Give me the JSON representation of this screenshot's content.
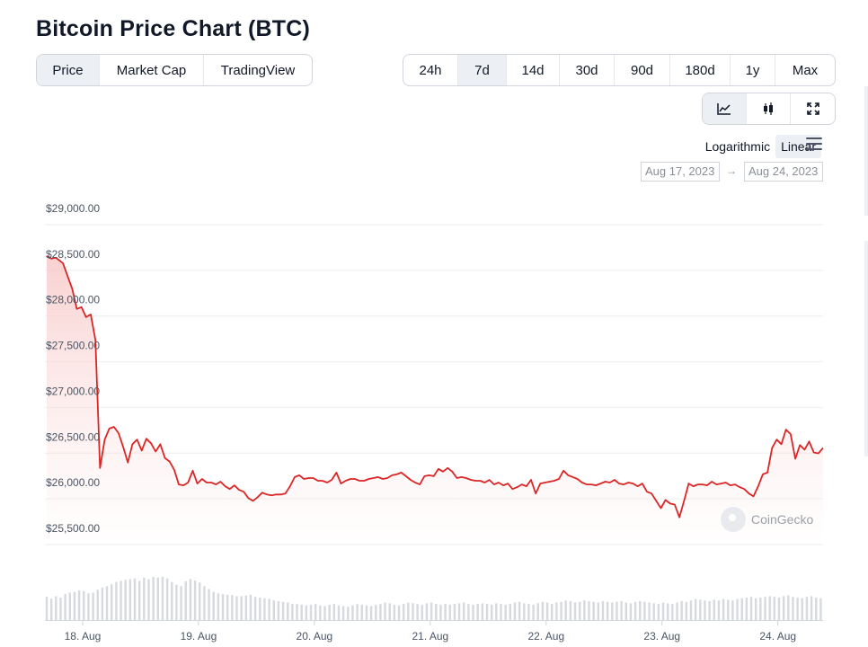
{
  "title": "Bitcoin Price Chart (BTC)",
  "tabs": [
    {
      "label": "Price",
      "active": true
    },
    {
      "label": "Market Cap",
      "active": false
    },
    {
      "label": "TradingView",
      "active": false
    }
  ],
  "ranges": [
    {
      "label": "24h",
      "active": false
    },
    {
      "label": "7d",
      "active": true
    },
    {
      "label": "14d",
      "active": false
    },
    {
      "label": "30d",
      "active": false
    },
    {
      "label": "90d",
      "active": false
    },
    {
      "label": "180d",
      "active": false
    },
    {
      "label": "1y",
      "active": false
    },
    {
      "label": "Max",
      "active": false
    }
  ],
  "views": [
    {
      "icon": "line-chart-icon",
      "active": true
    },
    {
      "icon": "candlestick-icon",
      "active": false
    },
    {
      "icon": "expand-icon",
      "active": false
    }
  ],
  "scale": {
    "log_label": "Logarithmic",
    "linear_label": "Linear",
    "selected": "Linear"
  },
  "date_range": {
    "from": "Aug 17, 2023",
    "arrow": "→",
    "to": "Aug 24, 2023"
  },
  "watermark": "CoinGecko",
  "colors": {
    "line": "#dc2626",
    "fill": "#fde2e2",
    "volume": "#d6d9de",
    "grid": "#eeeeee"
  },
  "chart_data": {
    "type": "area",
    "title": "",
    "xlabel": "",
    "ylabel": "",
    "ylim": [
      25500,
      29000
    ],
    "yticks": [
      "$29,000.00",
      "$28,500.00",
      "$28,000.00",
      "$27,500.00",
      "$27,000.00",
      "$26,500.00",
      "$26,000.00",
      "$25,500.00"
    ],
    "ytick_values": [
      29000,
      28500,
      28000,
      27500,
      27000,
      26500,
      26000,
      25500
    ],
    "xticks": [
      {
        "label": "18. Aug",
        "t": 0.95
      },
      {
        "label": "19. Aug",
        "t": 1.95
      },
      {
        "label": "20. Aug",
        "t": 2.95
      },
      {
        "label": "21. Aug",
        "t": 3.95
      },
      {
        "label": "22. Aug",
        "t": 4.95
      },
      {
        "label": "23. Aug",
        "t": 5.95
      },
      {
        "label": "24. Aug",
        "t": 6.95
      }
    ],
    "xrange": [
      0.64,
      7.34
    ],
    "grid": true,
    "legend": "none",
    "series": [
      {
        "price": [
          [
            0.64,
            28540
          ],
          [
            0.68,
            28510
          ],
          [
            0.72,
            28520
          ],
          [
            0.78,
            28460
          ],
          [
            0.82,
            28320
          ],
          [
            0.86,
            28180
          ],
          [
            0.9,
            27960
          ],
          [
            0.94,
            27980
          ],
          [
            0.98,
            27870
          ],
          [
            1.02,
            27900
          ],
          [
            1.06,
            27620
          ],
          [
            1.1,
            26220
          ],
          [
            1.14,
            26530
          ],
          [
            1.18,
            26650
          ],
          [
            1.22,
            26670
          ],
          [
            1.26,
            26600
          ],
          [
            1.3,
            26450
          ],
          [
            1.34,
            26280
          ],
          [
            1.38,
            26480
          ],
          [
            1.42,
            26530
          ],
          [
            1.46,
            26410
          ],
          [
            1.5,
            26540
          ],
          [
            1.54,
            26490
          ],
          [
            1.58,
            26400
          ],
          [
            1.62,
            26480
          ],
          [
            1.66,
            26330
          ],
          [
            1.7,
            26290
          ],
          [
            1.74,
            26200
          ],
          [
            1.78,
            26040
          ],
          [
            1.82,
            26030
          ],
          [
            1.86,
            26060
          ],
          [
            1.9,
            26190
          ],
          [
            1.94,
            26050
          ],
          [
            1.98,
            26100
          ],
          [
            2.02,
            26060
          ],
          [
            2.06,
            26060
          ],
          [
            2.1,
            26040
          ],
          [
            2.14,
            26070
          ],
          [
            2.18,
            26020
          ],
          [
            2.22,
            25990
          ],
          [
            2.26,
            26030
          ],
          [
            2.3,
            25980
          ],
          [
            2.34,
            25960
          ],
          [
            2.38,
            25890
          ],
          [
            2.42,
            25860
          ],
          [
            2.46,
            25900
          ],
          [
            2.5,
            25950
          ],
          [
            2.54,
            25930
          ],
          [
            2.58,
            25920
          ],
          [
            2.62,
            25930
          ],
          [
            2.66,
            25930
          ],
          [
            2.7,
            25940
          ],
          [
            2.74,
            26020
          ],
          [
            2.78,
            26120
          ],
          [
            2.82,
            26140
          ],
          [
            2.86,
            26100
          ],
          [
            2.9,
            26110
          ],
          [
            2.94,
            26110
          ],
          [
            2.98,
            26080
          ],
          [
            3.02,
            26080
          ],
          [
            3.06,
            26060
          ],
          [
            3.1,
            26090
          ],
          [
            3.14,
            26170
          ],
          [
            3.18,
            26050
          ],
          [
            3.22,
            26080
          ],
          [
            3.26,
            26100
          ],
          [
            3.3,
            26100
          ],
          [
            3.34,
            26080
          ],
          [
            3.38,
            26080
          ],
          [
            3.42,
            26100
          ],
          [
            3.46,
            26110
          ],
          [
            3.5,
            26120
          ],
          [
            3.54,
            26100
          ],
          [
            3.58,
            26110
          ],
          [
            3.62,
            26140
          ],
          [
            3.66,
            26150
          ],
          [
            3.7,
            26170
          ],
          [
            3.74,
            26130
          ],
          [
            3.78,
            26090
          ],
          [
            3.82,
            26060
          ],
          [
            3.86,
            26040
          ],
          [
            3.9,
            26130
          ],
          [
            3.94,
            26140
          ],
          [
            3.98,
            26130
          ],
          [
            4.02,
            26210
          ],
          [
            4.06,
            26180
          ],
          [
            4.1,
            26220
          ],
          [
            4.14,
            26180
          ],
          [
            4.18,
            26110
          ],
          [
            4.22,
            26120
          ],
          [
            4.26,
            26110
          ],
          [
            4.3,
            26090
          ],
          [
            4.34,
            26080
          ],
          [
            4.38,
            26080
          ],
          [
            4.42,
            26060
          ],
          [
            4.46,
            26090
          ],
          [
            4.5,
            26040
          ],
          [
            4.54,
            26060
          ],
          [
            4.58,
            26030
          ],
          [
            4.62,
            26050
          ],
          [
            4.66,
            25990
          ],
          [
            4.7,
            26010
          ],
          [
            4.74,
            26040
          ],
          [
            4.78,
            26020
          ],
          [
            4.82,
            26090
          ],
          [
            4.86,
            25940
          ],
          [
            4.9,
            26050
          ],
          [
            4.94,
            26060
          ],
          [
            4.98,
            26070
          ],
          [
            5.02,
            26080
          ],
          [
            5.06,
            26100
          ],
          [
            5.1,
            26190
          ],
          [
            5.14,
            26140
          ],
          [
            5.18,
            26120
          ],
          [
            5.22,
            26100
          ],
          [
            5.26,
            26060
          ],
          [
            5.3,
            26040
          ],
          [
            5.34,
            26040
          ],
          [
            5.38,
            26030
          ],
          [
            5.42,
            26050
          ],
          [
            5.46,
            26070
          ],
          [
            5.5,
            26060
          ],
          [
            5.54,
            26090
          ],
          [
            5.58,
            26050
          ],
          [
            5.62,
            26040
          ],
          [
            5.66,
            26060
          ],
          [
            5.7,
            26050
          ],
          [
            5.74,
            26020
          ],
          [
            5.78,
            26050
          ],
          [
            5.82,
            25960
          ],
          [
            5.86,
            25940
          ],
          [
            5.9,
            25860
          ],
          [
            5.94,
            25780
          ],
          [
            5.98,
            25870
          ],
          [
            6.02,
            25830
          ],
          [
            6.06,
            25820
          ],
          [
            6.1,
            25680
          ],
          [
            6.14,
            25860
          ],
          [
            6.18,
            26050
          ],
          [
            6.22,
            26020
          ],
          [
            6.26,
            26040
          ],
          [
            6.3,
            26040
          ],
          [
            6.34,
            26030
          ],
          [
            6.38,
            26070
          ],
          [
            6.42,
            26040
          ],
          [
            6.46,
            26050
          ],
          [
            6.5,
            26060
          ],
          [
            6.54,
            26030
          ],
          [
            6.58,
            26040
          ],
          [
            6.62,
            26010
          ],
          [
            6.66,
            25990
          ],
          [
            6.7,
            25940
          ],
          [
            6.74,
            25910
          ],
          [
            6.78,
            26020
          ],
          [
            6.82,
            26150
          ],
          [
            6.86,
            26170
          ],
          [
            6.9,
            26440
          ],
          [
            6.94,
            26530
          ],
          [
            6.98,
            26480
          ],
          [
            7.02,
            26640
          ],
          [
            7.06,
            26590
          ],
          [
            7.1,
            26320
          ],
          [
            7.14,
            26470
          ],
          [
            7.18,
            26420
          ],
          [
            7.22,
            26510
          ],
          [
            7.26,
            26390
          ],
          [
            7.3,
            26380
          ],
          [
            7.34,
            26440
          ]
        ]
      }
    ],
    "volume": {
      "t0": 0.64,
      "dt": 0.04,
      "relative": [
        0.5,
        0.45,
        0.52,
        0.48,
        0.58,
        0.62,
        0.64,
        0.68,
        0.66,
        0.6,
        0.62,
        0.7,
        0.76,
        0.8,
        0.85,
        0.92,
        0.95,
        0.98,
        1.0,
        1.02,
        0.95,
        1.04,
        1.0,
        1.06,
        1.04,
        1.06,
        1.02,
        0.92,
        0.84,
        0.8,
        0.94,
        1.0,
        0.96,
        0.9,
        0.8,
        0.72,
        0.64,
        0.6,
        0.58,
        0.56,
        0.55,
        0.52,
        0.52,
        0.54,
        0.56,
        0.5,
        0.48,
        0.46,
        0.44,
        0.4,
        0.38,
        0.36,
        0.34,
        0.3,
        0.3,
        0.28,
        0.26,
        0.28,
        0.3,
        0.26,
        0.24,
        0.28,
        0.3,
        0.26,
        0.24,
        0.22,
        0.26,
        0.3,
        0.28,
        0.26,
        0.24,
        0.28,
        0.3,
        0.34,
        0.32,
        0.28,
        0.26,
        0.3,
        0.34,
        0.32,
        0.3,
        0.28,
        0.32,
        0.34,
        0.3,
        0.28,
        0.3,
        0.28,
        0.3,
        0.32,
        0.34,
        0.3,
        0.28,
        0.3,
        0.32,
        0.3,
        0.28,
        0.32,
        0.3,
        0.28,
        0.3,
        0.34,
        0.36,
        0.32,
        0.3,
        0.28,
        0.32,
        0.36,
        0.34,
        0.3,
        0.34,
        0.36,
        0.4,
        0.38,
        0.34,
        0.36,
        0.4,
        0.38,
        0.36,
        0.34,
        0.38,
        0.36,
        0.34,
        0.36,
        0.38,
        0.34,
        0.32,
        0.36,
        0.38,
        0.36,
        0.34,
        0.32,
        0.3,
        0.34,
        0.32,
        0.3,
        0.34,
        0.38,
        0.36,
        0.4,
        0.44,
        0.42,
        0.4,
        0.38,
        0.42,
        0.4,
        0.44,
        0.42,
        0.4,
        0.44,
        0.46,
        0.48,
        0.5,
        0.46,
        0.48,
        0.5,
        0.52,
        0.5,
        0.48,
        0.52,
        0.54,
        0.5,
        0.48,
        0.46,
        0.5,
        0.52,
        0.48,
        0.46,
        0.5,
        0.48
      ]
    }
  }
}
